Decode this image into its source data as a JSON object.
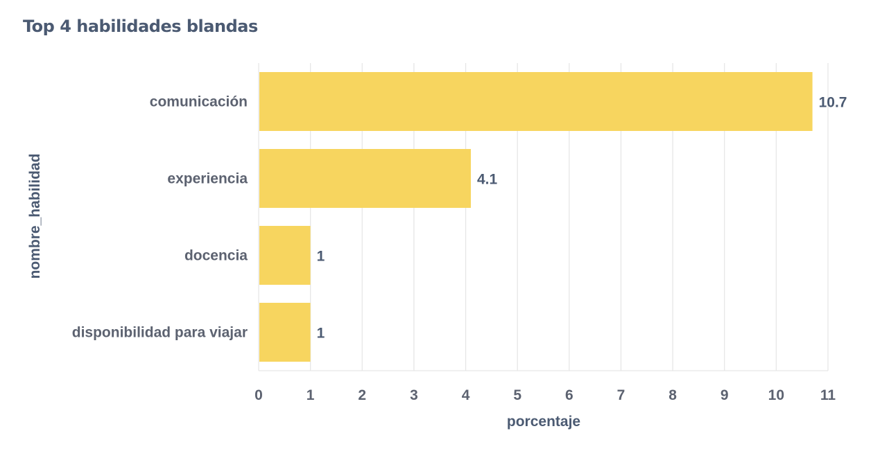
{
  "chart_data": {
    "type": "bar",
    "orientation": "horizontal",
    "title": "Top 4 habilidades blandas",
    "xlabel": "porcentaje",
    "ylabel": "nombre_habilidad",
    "categories": [
      "comunicación",
      "experiencia",
      "docencia",
      "disponibilidad para viajar"
    ],
    "values": [
      10.7,
      4.1,
      1,
      1
    ],
    "value_labels": [
      "10.7",
      "4.1",
      "1",
      "1"
    ],
    "xlim": [
      0,
      11
    ],
    "x_ticks": [
      "0",
      "1",
      "2",
      "3",
      "4",
      "5",
      "6",
      "7",
      "8",
      "9",
      "10",
      "11"
    ],
    "grid": true,
    "bar_color": "#f7d55f"
  }
}
